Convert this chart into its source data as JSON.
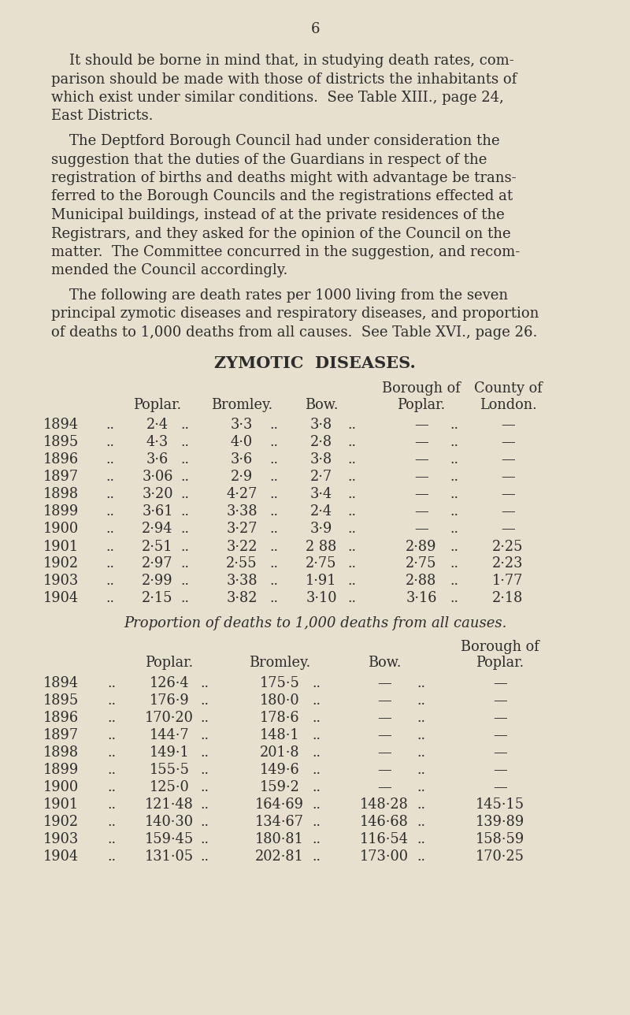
{
  "page_number": "6",
  "bg_color": "#e8e0cf",
  "text_color": "#2c2c2c",
  "para1_lines": [
    "    It should be borne in mind that, in studying death rates, com-",
    "parison should be made with those of districts the inhabitants of",
    "which exist under similar conditions.  See Table XIII., page 24,",
    "East Districts."
  ],
  "para2_lines": [
    "    The Deptford Borough Council had under consideration the",
    "suggestion that the duties of the Guardians in respect of the",
    "registration of births and deaths might with advantage be trans-",
    "ferred to the Borough Councils and the registrations effected at",
    "Municipal buildings, instead of at the private residences of the",
    "Registrars, and they asked for the opinion of the Council on the",
    "matter.  The Committee concurred in the suggestion, and recom-",
    "mended the Council accordingly."
  ],
  "para3_lines": [
    "    The following are death rates per 1000 living from the seven",
    "principal zymotic diseases and respiratory diseases, and proportion",
    "of deaths to 1,000 deaths from all causes.  See Table XVI., page 26."
  ],
  "zymotic_title": "ZYMOTIC  DISEASES.",
  "zymotic_rows": [
    [
      "1894",
      "2·4",
      "3·3",
      "3·8",
      "—",
      "—"
    ],
    [
      "1895",
      "4·3",
      "4·0",
      "2·8",
      "—",
      "—"
    ],
    [
      "1896",
      "3·6",
      "3·6",
      "3·8",
      "—",
      "—"
    ],
    [
      "1897",
      "3·06",
      "2·9",
      "2·7",
      "—",
      "—"
    ],
    [
      "1898",
      "3·20",
      "4·27",
      "3·4",
      "—",
      "—"
    ],
    [
      "1899",
      "3·61",
      "3·38",
      "2·4",
      "—",
      "—"
    ],
    [
      "1900",
      "2·94",
      "3·27",
      "3·9",
      "—",
      "—"
    ],
    [
      "1901",
      "2·51",
      "3·22",
      "2 88",
      "2·89",
      "2·25"
    ],
    [
      "1902",
      "2·97",
      "2·55",
      "2·75",
      "2·75",
      "2·23"
    ],
    [
      "1903",
      "2·99",
      "3·38",
      "1·91",
      "2·88",
      "1·77"
    ],
    [
      "1904",
      "2·15",
      "3·82",
      "3·10",
      "3·16",
      "2·18"
    ]
  ],
  "proportion_title": "Proportion of deaths to 1,000 deaths from all causes.",
  "proportion_rows": [
    [
      "1894",
      "126·4",
      "175·5",
      "—",
      "—"
    ],
    [
      "1895",
      "176·9",
      "180·0",
      "—",
      "—"
    ],
    [
      "1896",
      "170·20",
      "178·6",
      "—",
      "—"
    ],
    [
      "1897",
      "144·7",
      "148·1",
      "—",
      "—"
    ],
    [
      "1898",
      "149·1",
      "201·8",
      "—",
      "—"
    ],
    [
      "1899",
      "155·5",
      "149·6",
      "—",
      "—"
    ],
    [
      "1900",
      "125·0",
      "159·2",
      "—",
      "—"
    ],
    [
      "1901",
      "121·48",
      "164·69",
      "148·28",
      "145·15"
    ],
    [
      "1902",
      "140·30",
      "134·67",
      "146·68",
      "139·89"
    ],
    [
      "1903",
      "159·45",
      "180·81",
      "116·54",
      "158·59"
    ],
    [
      "1904",
      "131·05",
      "202·81",
      "173·00",
      "170·25"
    ]
  ]
}
